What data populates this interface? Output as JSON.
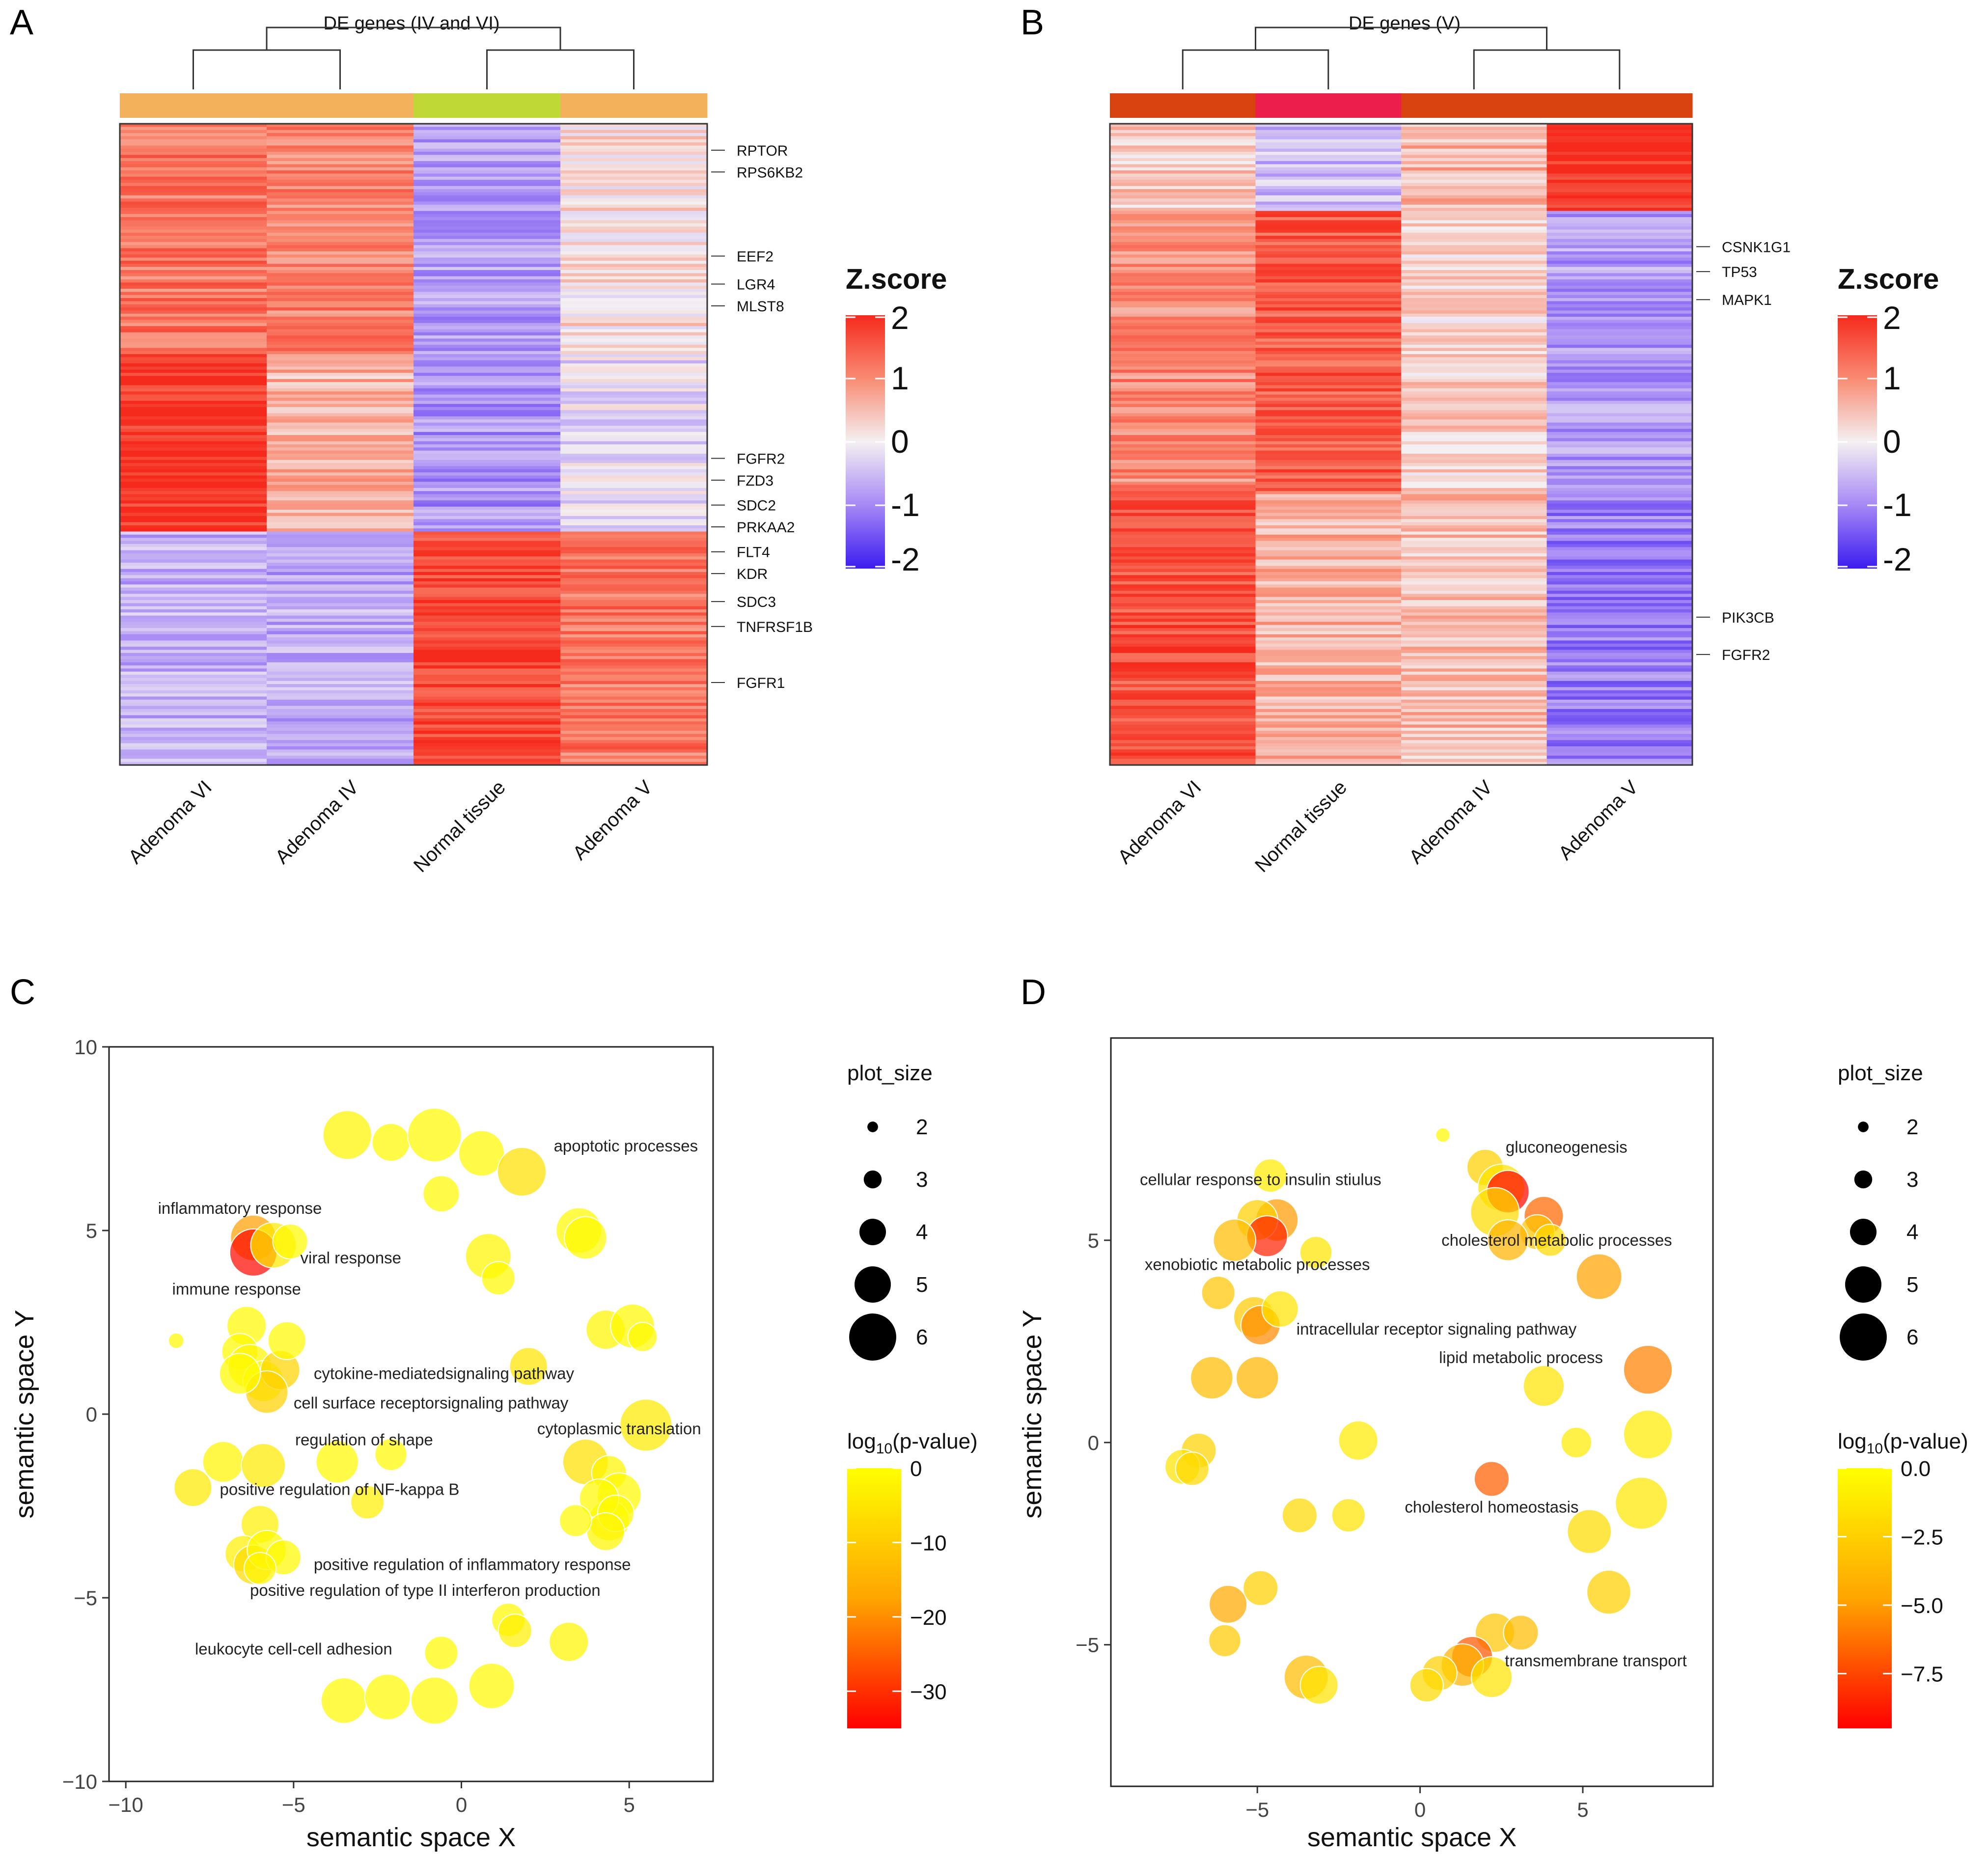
{
  "figure": {
    "panels": [
      "A",
      "B",
      "C",
      "D"
    ]
  },
  "chart_data": [
    {
      "panel": "A",
      "type": "heatmap",
      "title": "DE genes (IV and VI)",
      "columns": [
        "Adenoma VI",
        "Adenoma IV",
        "Normal tissue",
        "Adenoma V"
      ],
      "column_group_colors": [
        "#F3B15C",
        "#F3B15C",
        "#BFD833",
        "#F3B15C"
      ],
      "blocks": [
        {
          "rows": 74,
          "z": [
            1.2,
            1.1,
            -0.8,
            0.2
          ]
        },
        {
          "rows": 57,
          "z": [
            1.9,
            0.6,
            -0.9,
            -0.2
          ]
        },
        {
          "rows": 75,
          "z": [
            -0.6,
            -0.7,
            1.7,
            1.2
          ]
        }
      ],
      "genes": [
        "RPTOR",
        "RPS6KB2",
        "EEF2",
        "LGR4",
        "MLST8",
        "FGFR2",
        "FZD3",
        "SDC2",
        "PRKAA2",
        "FLT4",
        "KDR",
        "SDC3",
        "TNFRSF1B",
        "FGFR1"
      ],
      "gene_rows": [
        8,
        15,
        42,
        51,
        58,
        107,
        114,
        122,
        129,
        137,
        144,
        153,
        161,
        179
      ],
      "legend": {
        "title": "Z.score",
        "ticks": [
          "2",
          "1",
          "0",
          "-1",
          "-2"
        ],
        "range": [
          -2,
          2
        ]
      }
    },
    {
      "panel": "B",
      "type": "heatmap",
      "title": "DE genes (V)",
      "columns": [
        "Adenoma VI",
        "Normal tissue",
        "Adenoma IV",
        "Adenoma V"
      ],
      "column_group_colors": [
        "#D8420E",
        "#EC1E4A",
        "#D8420E",
        "#D8420E"
      ],
      "blocks": [
        {
          "rows": 28,
          "z": [
            0.4,
            -0.5,
            0.6,
            2.0
          ]
        },
        {
          "rows": 90,
          "z": [
            1.0,
            1.5,
            0.3,
            -0.8
          ]
        },
        {
          "rows": 88,
          "z": [
            1.6,
            0.6,
            0.5,
            -1.1
          ]
        }
      ],
      "genes": [
        "CSNK1G1",
        "TP53",
        "MAPK1",
        "PIK3CB",
        "FGFR2"
      ],
      "gene_rows": [
        39,
        47,
        56,
        158,
        170
      ],
      "legend": {
        "title": "Z.score",
        "ticks": [
          "2",
          "1",
          "0",
          "-1",
          "-2"
        ],
        "range": [
          -2,
          2
        ]
      }
    },
    {
      "panel": "C",
      "type": "scatter",
      "xlabel": "semantic space X",
      "ylabel": "semantic space Y",
      "xlim": [
        -10.5,
        7.5
      ],
      "ylim": [
        -10,
        10
      ],
      "xticks": [
        "−10",
        "−5",
        "0",
        "5"
      ],
      "yticks": [
        "10",
        "5",
        "0",
        "−5",
        "−10"
      ],
      "size_legend": {
        "title": "plot_size",
        "values": [
          "2",
          "3",
          "4",
          "5",
          "6"
        ]
      },
      "color_legend": {
        "title": "log10(p-value)",
        "range": [
          -35,
          0
        ],
        "ticks": [
          "0",
          "−10",
          "−20",
          "−30"
        ]
      },
      "points": [
        {
          "x": -3.4,
          "y": 7.6,
          "s": 4.5,
          "p": -2
        },
        {
          "x": -2.1,
          "y": 7.4,
          "s": 3.8,
          "p": -1
        },
        {
          "x": -0.8,
          "y": 7.6,
          "s": 4.8,
          "p": -1
        },
        {
          "x": 0.6,
          "y": 7.1,
          "s": 4.3,
          "p": -1
        },
        {
          "x": 1.8,
          "y": 6.6,
          "s": 4.5,
          "p": -6
        },
        {
          "x": -0.6,
          "y": 6.0,
          "s": 3.7,
          "p": -1
        },
        {
          "x": -6.2,
          "y": 4.8,
          "s": 4.3,
          "p": -18
        },
        {
          "x": -6.2,
          "y": 4.4,
          "s": 4.4,
          "p": -34
        },
        {
          "x": -5.6,
          "y": 4.6,
          "s": 4.3,
          "p": -4
        },
        {
          "x": -5.1,
          "y": 4.7,
          "s": 3.6,
          "p": -1
        },
        {
          "x": 0.8,
          "y": 4.3,
          "s": 4.3,
          "p": -2
        },
        {
          "x": 1.1,
          "y": 3.7,
          "s": 3.5,
          "p": -1
        },
        {
          "x": 3.5,
          "y": 5.0,
          "s": 4.3,
          "p": -1
        },
        {
          "x": 3.7,
          "y": 4.8,
          "s": 4.1,
          "p": -1
        },
        {
          "x": 4.3,
          "y": 2.3,
          "s": 3.9,
          "p": -2
        },
        {
          "x": 5.1,
          "y": 2.4,
          "s": 4.2,
          "p": -1
        },
        {
          "x": 5.4,
          "y": 2.1,
          "s": 3.2,
          "p": -1
        },
        {
          "x": -8.5,
          "y": 2.0,
          "s": 2.1,
          "p": -1
        },
        {
          "x": -6.4,
          "y": 2.4,
          "s": 3.9,
          "p": -1
        },
        {
          "x": -6.6,
          "y": 1.7,
          "s": 3.7,
          "p": -1
        },
        {
          "x": -6.3,
          "y": 1.3,
          "s": 4.2,
          "p": -2
        },
        {
          "x": -5.9,
          "y": 0.9,
          "s": 4.0,
          "p": -1
        },
        {
          "x": -5.4,
          "y": 1.2,
          "s": 3.9,
          "p": -8
        },
        {
          "x": -5.8,
          "y": 0.6,
          "s": 4.1,
          "p": -9
        },
        {
          "x": -5.2,
          "y": 2.0,
          "s": 3.8,
          "p": -1
        },
        {
          "x": -6.6,
          "y": 1.1,
          "s": 4.0,
          "p": -1
        },
        {
          "x": 2.0,
          "y": 1.3,
          "s": 3.8,
          "p": -5
        },
        {
          "x": 5.5,
          "y": -0.3,
          "s": 4.7,
          "p": -4
        },
        {
          "x": -7.1,
          "y": -1.3,
          "s": 4.0,
          "p": -2
        },
        {
          "x": -5.9,
          "y": -1.4,
          "s": 4.2,
          "p": -4
        },
        {
          "x": -3.7,
          "y": -1.3,
          "s": 4.1,
          "p": -1
        },
        {
          "x": -2.1,
          "y": -1.1,
          "s": 3.4,
          "p": -1
        },
        {
          "x": -8.0,
          "y": -2.0,
          "s": 3.8,
          "p": -4
        },
        {
          "x": -2.8,
          "y": -2.4,
          "s": 3.5,
          "p": -3
        },
        {
          "x": -6.0,
          "y": -3.0,
          "s": 3.8,
          "p": -3
        },
        {
          "x": 3.7,
          "y": -1.3,
          "s": 4.3,
          "p": -6
        },
        {
          "x": 4.4,
          "y": -1.6,
          "s": 3.6,
          "p": -2
        },
        {
          "x": 4.7,
          "y": -2.2,
          "s": 4.2,
          "p": -1
        },
        {
          "x": 4.4,
          "y": -2.9,
          "s": 4.0,
          "p": -1
        },
        {
          "x": 4.1,
          "y": -2.3,
          "s": 3.9,
          "p": -1
        },
        {
          "x": 4.6,
          "y": -2.7,
          "s": 3.7,
          "p": -1
        },
        {
          "x": 4.3,
          "y": -3.2,
          "s": 3.8,
          "p": -2
        },
        {
          "x": 3.4,
          "y": -2.9,
          "s": 3.4,
          "p": -1
        },
        {
          "x": -6.5,
          "y": -3.8,
          "s": 3.7,
          "p": -3
        },
        {
          "x": -6.2,
          "y": -4.1,
          "s": 3.9,
          "p": -7
        },
        {
          "x": -5.8,
          "y": -3.7,
          "s": 3.9,
          "p": -1
        },
        {
          "x": -5.3,
          "y": -3.9,
          "s": 3.6,
          "p": -1
        },
        {
          "x": -6.0,
          "y": -4.2,
          "s": 3.4,
          "p": -2
        },
        {
          "x": 1.4,
          "y": -5.6,
          "s": 3.5,
          "p": -1
        },
        {
          "x": 1.6,
          "y": -5.9,
          "s": 3.5,
          "p": -3
        },
        {
          "x": -0.6,
          "y": -6.5,
          "s": 3.5,
          "p": -1
        },
        {
          "x": 3.2,
          "y": -6.2,
          "s": 3.9,
          "p": -2
        },
        {
          "x": -3.5,
          "y": -7.8,
          "s": 4.3,
          "p": -1
        },
        {
          "x": -2.2,
          "y": -7.7,
          "s": 4.3,
          "p": -1
        },
        {
          "x": -0.8,
          "y": -7.8,
          "s": 4.4,
          "p": -1
        },
        {
          "x": 0.9,
          "y": -7.4,
          "s": 4.3,
          "p": -1
        }
      ],
      "annotations": [
        {
          "text": "apoptotic processes",
          "x": 4.9,
          "y": 7.3,
          "anchor": "middle"
        },
        {
          "text": "inflammatory response",
          "x": -6.6,
          "y": 5.6,
          "anchor": "middle"
        },
        {
          "text": "viral response",
          "x": -4.8,
          "y": 4.25,
          "anchor": "start"
        },
        {
          "text": "immune response",
          "x": -6.7,
          "y": 3.4,
          "anchor": "middle"
        },
        {
          "text": "cytokine-mediatedsignaling pathway",
          "x": -4.4,
          "y": 1.1,
          "anchor": "start"
        },
        {
          "text": "cell surface receptorsignaling pathway",
          "x": -5.0,
          "y": 0.3,
          "anchor": "start"
        },
        {
          "text": "cytoplasmic translation",
          "x": 4.7,
          "y": -0.4,
          "anchor": "middle"
        },
        {
          "text": "regulation of shape",
          "x": -2.9,
          "y": -0.7,
          "anchor": "middle"
        },
        {
          "text": "positive regulation of NF-kappa B",
          "x": -7.2,
          "y": -2.05,
          "anchor": "start"
        },
        {
          "text": "positive regulation of inflammatory response",
          "x": -4.4,
          "y": -4.1,
          "anchor": "start"
        },
        {
          "text": "positive regulation of type II interferon production",
          "x": -6.3,
          "y": -4.8,
          "anchor": "start"
        },
        {
          "text": "leukocyte cell-cell adhesion",
          "x": -5.0,
          "y": -6.4,
          "anchor": "middle"
        }
      ]
    },
    {
      "panel": "D",
      "type": "scatter",
      "xlabel": "semantic space X",
      "ylabel": "semantic space Y",
      "xlim": [
        -9.5,
        9
      ],
      "ylim": [
        -8.5,
        10
      ],
      "xticks": [
        "−5",
        "0",
        "5"
      ],
      "yticks": [
        "5",
        "0",
        "−5"
      ],
      "size_legend": {
        "title": "plot_size",
        "values": [
          "2",
          "3",
          "4",
          "5",
          "6"
        ]
      },
      "color_legend": {
        "title": "log10(p-value)",
        "range": [
          -9.5,
          0
        ],
        "ticks": [
          "0.0",
          "−2.5",
          "−5.0",
          "−7.5"
        ]
      },
      "points": [
        {
          "x": 0.7,
          "y": 7.6,
          "s": 2.0,
          "p": -0.3
        },
        {
          "x": 2.0,
          "y": 6.8,
          "s": 3.7,
          "p": -2.5
        },
        {
          "x": 2.5,
          "y": 6.3,
          "s": 4.4,
          "p": -1.5
        },
        {
          "x": 2.7,
          "y": 6.2,
          "s": 4.1,
          "p": -9.3
        },
        {
          "x": 2.3,
          "y": 5.7,
          "s": 4.5,
          "p": -1.8
        },
        {
          "x": 3.8,
          "y": 5.6,
          "s": 3.9,
          "p": -6.5
        },
        {
          "x": 3.6,
          "y": 5.2,
          "s": 3.6,
          "p": -3.0
        },
        {
          "x": 4.0,
          "y": 5.0,
          "s": 3.4,
          "p": -2.0
        },
        {
          "x": 2.7,
          "y": 5.0,
          "s": 4.0,
          "p": -4.0
        },
        {
          "x": 5.5,
          "y": 4.1,
          "s": 4.3,
          "p": -4.8
        },
        {
          "x": -4.4,
          "y": 5.5,
          "s": 4.1,
          "p": -5.0
        },
        {
          "x": -5.0,
          "y": 5.5,
          "s": 4.0,
          "p": -2.5
        },
        {
          "x": -4.7,
          "y": 5.1,
          "s": 4.0,
          "p": -8.5
        },
        {
          "x": -5.7,
          "y": 5.0,
          "s": 4.1,
          "p": -3.5
        },
        {
          "x": -4.6,
          "y": 6.6,
          "s": 3.5,
          "p": -1.0
        },
        {
          "x": -3.2,
          "y": 4.7,
          "s": 3.4,
          "p": -1.3
        },
        {
          "x": -6.2,
          "y": 3.7,
          "s": 3.5,
          "p": -3.0
        },
        {
          "x": -5.1,
          "y": 3.1,
          "s": 4.0,
          "p": -2.8
        },
        {
          "x": -4.9,
          "y": 2.9,
          "s": 3.9,
          "p": -5.5
        },
        {
          "x": -4.3,
          "y": 3.3,
          "s": 3.7,
          "p": -1.5
        },
        {
          "x": 7.0,
          "y": 1.8,
          "s": 4.5,
          "p": -5.8
        },
        {
          "x": 3.8,
          "y": 1.4,
          "s": 4.0,
          "p": -1.5
        },
        {
          "x": -6.4,
          "y": 1.6,
          "s": 4.1,
          "p": -3.5
        },
        {
          "x": -5.0,
          "y": 1.6,
          "s": 4.1,
          "p": -3.8
        },
        {
          "x": 7.0,
          "y": 0.2,
          "s": 4.5,
          "p": -1.0
        },
        {
          "x": -1.9,
          "y": 0.05,
          "s": 3.9,
          "p": -1.0
        },
        {
          "x": 4.8,
          "y": 0.0,
          "s": 3.3,
          "p": -1.0
        },
        {
          "x": -6.8,
          "y": -0.2,
          "s": 3.6,
          "p": -2.3
        },
        {
          "x": -7.3,
          "y": -0.6,
          "s": 3.6,
          "p": -1.5
        },
        {
          "x": -7.0,
          "y": -0.65,
          "s": 3.5,
          "p": -2.0
        },
        {
          "x": 2.2,
          "y": -0.9,
          "s": 3.6,
          "p": -6.8
        },
        {
          "x": -3.7,
          "y": -1.8,
          "s": 3.6,
          "p": -2.0
        },
        {
          "x": -2.2,
          "y": -1.8,
          "s": 3.5,
          "p": -1.5
        },
        {
          "x": 6.8,
          "y": -1.5,
          "s": 4.7,
          "p": -1.2
        },
        {
          "x": 5.2,
          "y": -2.2,
          "s": 4.2,
          "p": -1.8
        },
        {
          "x": -4.9,
          "y": -3.6,
          "s": 3.6,
          "p": -2.5
        },
        {
          "x": -5.9,
          "y": -4.0,
          "s": 3.8,
          "p": -4.5
        },
        {
          "x": 5.8,
          "y": -3.7,
          "s": 4.2,
          "p": -2.5
        },
        {
          "x": -6.0,
          "y": -4.9,
          "s": 3.4,
          "p": -2.8
        },
        {
          "x": 2.3,
          "y": -4.7,
          "s": 3.9,
          "p": -3.0
        },
        {
          "x": 3.1,
          "y": -4.7,
          "s": 3.6,
          "p": -3.5
        },
        {
          "x": 1.6,
          "y": -5.3,
          "s": 4.0,
          "p": -7.0
        },
        {
          "x": 1.3,
          "y": -5.5,
          "s": 4.1,
          "p": -4.0
        },
        {
          "x": 0.6,
          "y": -5.7,
          "s": 3.6,
          "p": -2.5
        },
        {
          "x": 2.2,
          "y": -5.8,
          "s": 4.0,
          "p": -1.5
        },
        {
          "x": 0.2,
          "y": -6.0,
          "s": 3.5,
          "p": -2.0
        },
        {
          "x": -3.5,
          "y": -5.8,
          "s": 4.2,
          "p": -3.5
        },
        {
          "x": -3.1,
          "y": -6.0,
          "s": 3.8,
          "p": -1.5
        }
      ],
      "annotations": [
        {
          "text": "gluconeogenesis",
          "x": 4.5,
          "y": 7.3,
          "anchor": "middle"
        },
        {
          "text": "cellular response to insulin stiulus",
          "x": -4.9,
          "y": 6.5,
          "anchor": "middle"
        },
        {
          "text": "cholesterol metabolic processes",
          "x": 4.2,
          "y": 5.0,
          "anchor": "middle"
        },
        {
          "text": "xenobiotic metabolic processes",
          "x": -5.0,
          "y": 4.4,
          "anchor": "middle"
        },
        {
          "text": "intracellular receptor signaling pathway",
          "x": -3.8,
          "y": 2.8,
          "anchor": "start"
        },
        {
          "text": "lipid metabolic process",
          "x": 3.1,
          "y": 2.1,
          "anchor": "middle"
        },
        {
          "text": "cholesterol homeostasis",
          "x": 2.2,
          "y": -1.6,
          "anchor": "middle"
        },
        {
          "text": "transmembrane transport",
          "x": 5.4,
          "y": -5.4,
          "anchor": "middle"
        }
      ]
    }
  ]
}
